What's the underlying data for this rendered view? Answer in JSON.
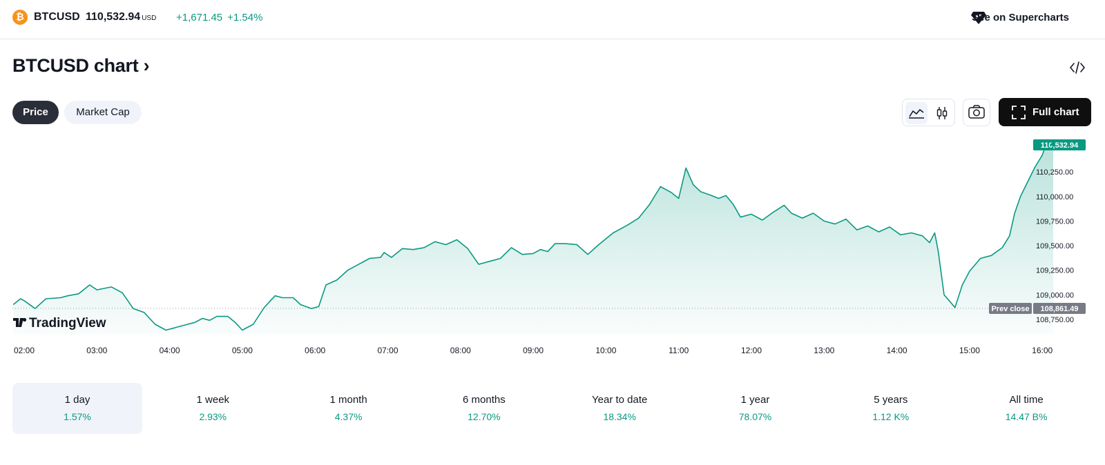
{
  "header": {
    "logo_glyph": "₿",
    "symbol": "BTCUSD",
    "price": "110,532.94",
    "currency": "USD",
    "change": "+1,671.45",
    "change_pct": "+1.54%",
    "supercharts_label": "See on Supercharts"
  },
  "title": "BTCUSD chart ›",
  "toggles": {
    "price": "Price",
    "market_cap": "Market Cap"
  },
  "controls": {
    "full_chart": "Full chart"
  },
  "icons": [
    "bitcoin-logo-icon",
    "supercharts-icon",
    "embed-code-icon",
    "line-chart-icon",
    "candlestick-icon",
    "camera-icon",
    "fullscreen-icon"
  ],
  "colors": {
    "line": "#089981",
    "positive": "#089981",
    "badge": "#089981",
    "prev_close_badge": "#787b86"
  },
  "chart_data": {
    "type": "area",
    "title": "",
    "xlabel": "",
    "ylabel": "",
    "x_ticks": [
      "02:00",
      "03:00",
      "04:00",
      "05:00",
      "06:00",
      "07:00",
      "08:00",
      "09:00",
      "10:00",
      "11:00",
      "12:00",
      "13:00",
      "14:00",
      "15:00",
      "16:00"
    ],
    "y_ticks": [
      "110,250.00",
      "110,000.00",
      "109,750.00",
      "109,500.00",
      "109,250.00",
      "109,000.00",
      "108,750.00"
    ],
    "ylim": [
      108700,
      110560
    ],
    "last_price_label": "110,532.94",
    "prev_close_text": "Prev close",
    "prev_close_value_label": "108,861.49",
    "prev_close": 108861.49,
    "watermark": "TradingView",
    "series": [
      {
        "time_hours": [
          1.85,
          1.95,
          2.0,
          2.15,
          2.3,
          2.5,
          2.6,
          2.75,
          2.9,
          3.0,
          3.2,
          3.35,
          3.5,
          3.65,
          3.8,
          3.95,
          4.05,
          4.2,
          4.35,
          4.45,
          4.55,
          4.65,
          4.8,
          4.9,
          5.0,
          5.15,
          5.3,
          5.45,
          5.55,
          5.7,
          5.8,
          5.95,
          6.05,
          6.15,
          6.3,
          6.45,
          6.6,
          6.75,
          6.9,
          6.95,
          7.05,
          7.2,
          7.35,
          7.5,
          7.65,
          7.8,
          7.95,
          8.1,
          8.25,
          8.4,
          8.55,
          8.7,
          8.85,
          9.0,
          9.1,
          9.2,
          9.3,
          9.45,
          9.6,
          9.75,
          9.9,
          10.1,
          10.3,
          10.45,
          10.6,
          10.75,
          10.9,
          11.0,
          11.1,
          11.2,
          11.3,
          11.45,
          11.55,
          11.65,
          11.75,
          11.85,
          12.0,
          12.15,
          12.3,
          12.45,
          12.55,
          12.7,
          12.85,
          13.0,
          13.15,
          13.3,
          13.45,
          13.6,
          13.75,
          13.9,
          14.05,
          14.2,
          14.35,
          14.45,
          14.52,
          14.57,
          14.65,
          14.72,
          14.8,
          14.9,
          15.0,
          15.15,
          15.3,
          15.45,
          15.55,
          15.62,
          15.7,
          15.8,
          15.9,
          16.0,
          16.05,
          16.1,
          16.15
        ],
        "values": [
          108900,
          108960,
          108940,
          108860,
          108960,
          108970,
          108990,
          109010,
          109100,
          109050,
          109080,
          109020,
          108860,
          108820,
          108700,
          108640,
          108660,
          108690,
          108720,
          108760,
          108740,
          108780,
          108780,
          108720,
          108640,
          108700,
          108870,
          108990,
          108970,
          108970,
          108900,
          108860,
          108880,
          109100,
          109150,
          109250,
          109310,
          109370,
          109380,
          109430,
          109380,
          109470,
          109460,
          109480,
          109540,
          109510,
          109560,
          109470,
          109310,
          109340,
          109370,
          109480,
          109410,
          109420,
          109460,
          109440,
          109520,
          109520,
          109510,
          109410,
          109510,
          109630,
          109710,
          109780,
          109920,
          110100,
          110040,
          109980,
          110290,
          110120,
          110050,
          110010,
          109980,
          110010,
          109920,
          109790,
          109820,
          109760,
          109840,
          109910,
          109830,
          109780,
          109830,
          109750,
          109720,
          109770,
          109660,
          109700,
          109640,
          109690,
          109610,
          109630,
          109600,
          109530,
          109630,
          109440,
          109000,
          108940,
          108870,
          109100,
          109240,
          109370,
          109400,
          109480,
          109600,
          109830,
          110000,
          110150,
          110300,
          110420,
          110530,
          110480,
          110533
        ]
      }
    ]
  },
  "periods": [
    {
      "label": "1 day",
      "value": "1.57%"
    },
    {
      "label": "1 week",
      "value": "2.93%"
    },
    {
      "label": "1 month",
      "value": "4.37%"
    },
    {
      "label": "6 months",
      "value": "12.70%"
    },
    {
      "label": "Year to date",
      "value": "18.34%"
    },
    {
      "label": "1 year",
      "value": "78.07%"
    },
    {
      "label": "5 years",
      "value": "1.12 K%"
    },
    {
      "label": "All time",
      "value": "14.47 B%"
    }
  ]
}
